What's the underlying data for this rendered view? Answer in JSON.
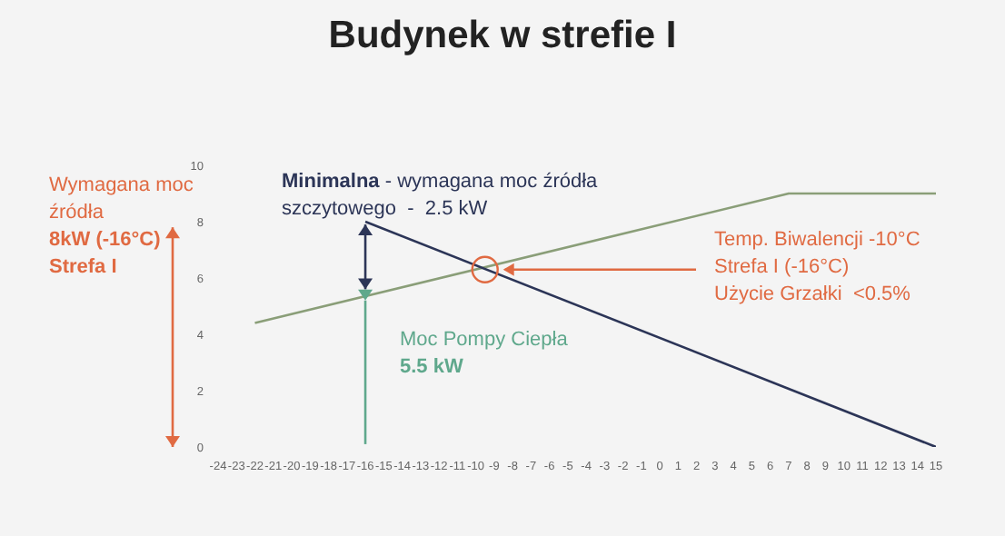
{
  "chart_data": {
    "type": "line",
    "title": "Budynek w strefie I",
    "xlim": [
      -24,
      15
    ],
    "xticks": [
      -24,
      -23,
      -22,
      -21,
      -20,
      -19,
      -18,
      -17,
      -16,
      -15,
      -14,
      -13,
      -12,
      -11,
      -10,
      -9,
      -8,
      -7,
      -6,
      -5,
      -4,
      -3,
      -2,
      -1,
      0,
      1,
      2,
      3,
      4,
      5,
      6,
      7,
      8,
      9,
      10,
      11,
      12,
      13,
      14,
      15
    ],
    "ylim": [
      0,
      10
    ],
    "yticks": [
      0,
      2,
      4,
      6,
      8,
      10
    ],
    "series": [
      {
        "color": "#8a9e78",
        "x": [
          -22,
          7,
          15
        ],
        "values": [
          4.4,
          9,
          9
        ]
      },
      {
        "color": "#2c3557",
        "x": [
          -16,
          15
        ],
        "values": [
          8,
          0
        ]
      }
    ],
    "annotations": [
      "Minimalna - wymagana moc źródła\nszczytowego  -  2.5 kW",
      "Moc Pompy Ciepła\n5.5 kW",
      "Temp. Biwalencji -10°C\nStrefa I (-16°C)\nUżycie Grzałki  <0.5%",
      "Wymagana moc\nźródła\n8kW (-16°C)\nStrefa I"
    ],
    "marker": "none",
    "line_style": "solid",
    "grid": false
  }
}
